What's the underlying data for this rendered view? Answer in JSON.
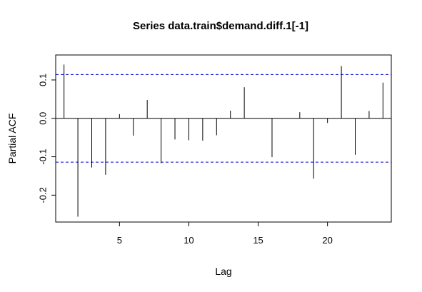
{
  "chart_data": {
    "type": "bar",
    "title": "Series  data.train$demand.diff.1[-1]",
    "xlabel": "Lag",
    "ylabel": "Partial ACF",
    "xlim": [
      0.4,
      24.6
    ],
    "ylim": [
      -0.27,
      0.165
    ],
    "x_ticks": [
      5,
      10,
      15,
      20
    ],
    "y_ticks": [
      -0.2,
      -0.1,
      0.0,
      0.1
    ],
    "y_tick_labels": [
      "-0.2",
      "-0.1",
      "0.0",
      "0.1"
    ],
    "x_tick_labels": [
      "5",
      "10",
      "15",
      "20"
    ],
    "confidence_bound": 0.114,
    "lags": [
      1,
      2,
      3,
      4,
      5,
      6,
      7,
      8,
      9,
      10,
      11,
      12,
      13,
      14,
      15,
      16,
      17,
      18,
      19,
      20,
      21,
      22,
      23,
      24
    ],
    "values": [
      0.14,
      -0.256,
      -0.128,
      -0.147,
      0.011,
      -0.045,
      0.048,
      -0.117,
      -0.055,
      -0.057,
      -0.058,
      -0.044,
      0.02,
      0.081,
      0.0,
      -0.101,
      0.0,
      0.016,
      -0.157,
      -0.012,
      0.136,
      -0.095,
      0.019,
      0.093
    ],
    "colors": {
      "bars": "#000000",
      "bounds": "#0000cc",
      "zero": "#000000"
    }
  }
}
